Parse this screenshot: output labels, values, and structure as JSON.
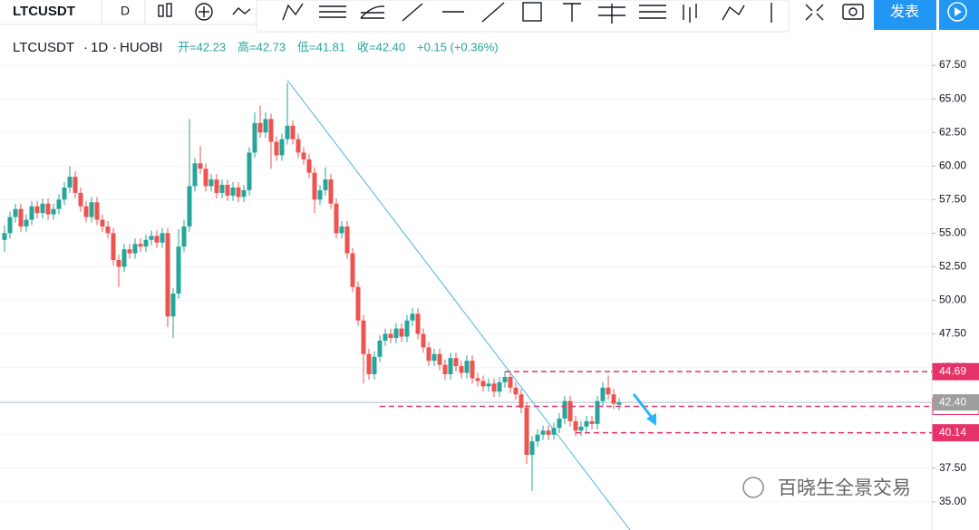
{
  "toolbar": {
    "symbol": "LTCUSDT",
    "interval": "D",
    "publish": "发表"
  },
  "chart_data": {
    "type": "candlestick",
    "legend": {
      "symbol": "LTCUSDT",
      "interval": "1D",
      "exchange": "HUOBI",
      "open": "开=42.23",
      "high": "高=42.73",
      "low": "低=41.81",
      "close": "收=42.40",
      "change": "+0.15 (+0.36%)"
    },
    "up_color": "#26a69a",
    "down_color": "#ef5350",
    "ylim": [
      32.9,
      70.0
    ],
    "yticks": [
      {
        "value": 35,
        "label": "35.00"
      },
      {
        "value": 37.5,
        "label": "37.50"
      },
      {
        "value": 40,
        "label": "40.00"
      },
      {
        "value": 42.5,
        "label": "42.50"
      },
      {
        "value": 45,
        "label": "45.00"
      },
      {
        "value": 47.5,
        "label": "47.50"
      },
      {
        "value": 50,
        "label": "50.00"
      },
      {
        "value": 52.5,
        "label": "52.50"
      },
      {
        "value": 55,
        "label": "55.00"
      },
      {
        "value": 57.5,
        "label": "57.50"
      },
      {
        "value": 60,
        "label": "60.00"
      },
      {
        "value": 62.5,
        "label": "62.50"
      },
      {
        "value": 65,
        "label": "65.00"
      },
      {
        "value": 67.5,
        "label": "67.50"
      }
    ],
    "grid": true,
    "levels": [
      {
        "value": 44.69,
        "label": "44.69",
        "color": "#e5336a",
        "start": 92
      },
      {
        "value": 42.11,
        "label": "42.11",
        "color": "#e5336a",
        "start": 69
      },
      {
        "value": 40.14,
        "label": "40.14",
        "color": "#e5336a",
        "start": 105
      }
    ],
    "last_price": {
      "value": 42.4,
      "label": "42.40",
      "color": "#9e9e9e"
    },
    "trendline": {
      "start": [
        52,
        66.4
      ],
      "end": [
        115,
        32.9
      ],
      "color": "#4fb3e0"
    },
    "watermark": "百晓生全景交易",
    "candles": [
      [
        54.5,
        55.6,
        53.6,
        55.0
      ],
      [
        55.0,
        56.6,
        54.6,
        56.2
      ],
      [
        56.2,
        57.2,
        55.8,
        56.8
      ],
      [
        56.8,
        57.2,
        55.1,
        55.5
      ],
      [
        55.5,
        56.4,
        55.1,
        56.0
      ],
      [
        56.0,
        57.4,
        55.6,
        57.0
      ],
      [
        57.0,
        57.4,
        56.1,
        56.5
      ],
      [
        56.5,
        57.6,
        56.1,
        57.2
      ],
      [
        57.2,
        57.6,
        56.0,
        56.4
      ],
      [
        56.4,
        57.2,
        56.0,
        56.8
      ],
      [
        56.8,
        57.9,
        56.4,
        57.5
      ],
      [
        57.5,
        58.8,
        57.1,
        58.4
      ],
      [
        58.4,
        60.0,
        58.0,
        59.2
      ],
      [
        59.2,
        59.6,
        57.6,
        58.0
      ],
      [
        58.0,
        58.4,
        56.6,
        57.0
      ],
      [
        57.0,
        57.4,
        55.8,
        56.2
      ],
      [
        56.2,
        57.7,
        55.8,
        57.3
      ],
      [
        57.3,
        57.7,
        55.6,
        56.0
      ],
      [
        56.0,
        56.4,
        55.1,
        55.5
      ],
      [
        55.5,
        55.9,
        54.6,
        55.0
      ],
      [
        55.0,
        55.4,
        52.6,
        53.0
      ],
      [
        53.0,
        53.4,
        51.0,
        52.5
      ],
      [
        52.5,
        54.2,
        52.1,
        53.8
      ],
      [
        53.8,
        54.2,
        53.1,
        53.5
      ],
      [
        53.5,
        54.6,
        53.1,
        54.2
      ],
      [
        54.2,
        54.6,
        53.6,
        54.0
      ],
      [
        54.0,
        54.9,
        53.6,
        54.5
      ],
      [
        54.5,
        55.2,
        54.1,
        54.8
      ],
      [
        54.8,
        55.2,
        53.9,
        54.3
      ],
      [
        54.3,
        55.4,
        53.9,
        55.0
      ],
      [
        55.0,
        55.4,
        48.0,
        48.8
      ],
      [
        48.8,
        50.9,
        47.2,
        50.5
      ],
      [
        50.5,
        55.3,
        50.1,
        54.0
      ],
      [
        54.0,
        56.0,
        53.6,
        55.5
      ],
      [
        55.5,
        63.5,
        55.1,
        58.5
      ],
      [
        58.5,
        60.6,
        58.1,
        60.2
      ],
      [
        60.2,
        61.5,
        59.4,
        59.8
      ],
      [
        59.8,
        60.2,
        58.1,
        58.5
      ],
      [
        58.5,
        59.4,
        58.1,
        59.0
      ],
      [
        59.0,
        59.4,
        57.6,
        58.0
      ],
      [
        58.0,
        59.0,
        57.6,
        58.6
      ],
      [
        58.6,
        59.0,
        57.4,
        57.8
      ],
      [
        57.8,
        58.8,
        57.4,
        58.4
      ],
      [
        58.4,
        58.8,
        57.3,
        57.7
      ],
      [
        57.7,
        58.6,
        57.3,
        58.2
      ],
      [
        58.2,
        61.4,
        57.8,
        61.0
      ],
      [
        61.0,
        64.0,
        60.6,
        63.2
      ],
      [
        63.2,
        64.5,
        62.1,
        62.5
      ],
      [
        62.5,
        64.0,
        62.1,
        63.5
      ],
      [
        63.5,
        63.9,
        59.8,
        61.8
      ],
      [
        61.8,
        62.2,
        60.4,
        60.8
      ],
      [
        60.8,
        62.4,
        60.4,
        62.0
      ],
      [
        62.0,
        66.2,
        61.6,
        63.0
      ],
      [
        63.0,
        63.4,
        61.6,
        62.0
      ],
      [
        62.0,
        62.4,
        60.6,
        61.0
      ],
      [
        61.0,
        61.4,
        60.1,
        60.5
      ],
      [
        60.5,
        60.9,
        59.1,
        59.5
      ],
      [
        59.5,
        59.9,
        56.5,
        57.5
      ],
      [
        57.5,
        58.6,
        57.1,
        58.2
      ],
      [
        58.2,
        59.9,
        57.8,
        59.0
      ],
      [
        59.0,
        59.4,
        56.8,
        57.2
      ],
      [
        57.2,
        57.6,
        54.6,
        55.0
      ],
      [
        55.0,
        55.9,
        54.6,
        55.5
      ],
      [
        55.5,
        55.9,
        53.1,
        53.5
      ],
      [
        53.5,
        53.9,
        50.6,
        51.0
      ],
      [
        51.0,
        51.4,
        48.1,
        48.5
      ],
      [
        48.5,
        48.9,
        43.8,
        46.0
      ],
      [
        46.0,
        46.4,
        44.1,
        44.5
      ],
      [
        44.5,
        46.2,
        44.1,
        45.8
      ],
      [
        45.8,
        47.4,
        45.4,
        47.0
      ],
      [
        47.0,
        47.9,
        46.6,
        47.5
      ],
      [
        47.5,
        47.9,
        46.8,
        47.2
      ],
      [
        47.2,
        48.3,
        46.8,
        47.9
      ],
      [
        47.9,
        48.3,
        46.9,
        47.3
      ],
      [
        47.3,
        48.9,
        46.9,
        48.5
      ],
      [
        48.5,
        49.4,
        48.1,
        49.0
      ],
      [
        49.0,
        49.4,
        47.1,
        47.5
      ],
      [
        47.5,
        47.9,
        46.1,
        46.5
      ],
      [
        46.5,
        46.9,
        45.1,
        45.5
      ],
      [
        45.5,
        46.4,
        45.1,
        46.0
      ],
      [
        46.0,
        46.4,
        44.8,
        45.2
      ],
      [
        45.2,
        45.6,
        44.1,
        44.5
      ],
      [
        44.5,
        46.1,
        44.1,
        45.7
      ],
      [
        45.7,
        46.1,
        44.7,
        45.1
      ],
      [
        45.1,
        45.5,
        44.2,
        44.6
      ],
      [
        44.6,
        45.9,
        44.2,
        45.5
      ],
      [
        45.5,
        45.9,
        43.8,
        44.2
      ],
      [
        44.2,
        44.6,
        43.6,
        44.0
      ],
      [
        44.0,
        44.4,
        43.2,
        43.6
      ],
      [
        43.6,
        44.2,
        43.2,
        43.8
      ],
      [
        43.8,
        44.2,
        42.8,
        43.2
      ],
      [
        43.2,
        44.3,
        42.8,
        43.9
      ],
      [
        43.9,
        44.7,
        43.5,
        44.3
      ],
      [
        44.3,
        44.7,
        43.1,
        43.5
      ],
      [
        43.5,
        43.9,
        42.6,
        43.0
      ],
      [
        43.0,
        43.4,
        41.6,
        42.0
      ],
      [
        42.0,
        42.4,
        37.8,
        38.5
      ],
      [
        38.5,
        39.9,
        35.8,
        39.5
      ],
      [
        39.5,
        40.4,
        39.1,
        40.0
      ],
      [
        40.0,
        40.7,
        39.6,
        40.3
      ],
      [
        40.3,
        40.7,
        39.6,
        40.0
      ],
      [
        40.0,
        40.9,
        39.6,
        40.5
      ],
      [
        40.5,
        41.6,
        40.1,
        41.2
      ],
      [
        41.2,
        42.9,
        40.8,
        42.5
      ],
      [
        42.5,
        42.9,
        40.6,
        41.0
      ],
      [
        41.0,
        41.4,
        39.9,
        40.3
      ],
      [
        40.3,
        41.0,
        39.9,
        40.6
      ],
      [
        40.6,
        41.4,
        40.2,
        41.0
      ],
      [
        41.0,
        41.4,
        40.4,
        40.8
      ],
      [
        40.8,
        42.9,
        40.4,
        42.5
      ],
      [
        42.5,
        43.9,
        42.1,
        43.5
      ],
      [
        43.5,
        44.4,
        42.6,
        43.0
      ],
      [
        43.0,
        43.4,
        41.9,
        42.3
      ],
      [
        42.23,
        42.73,
        41.81,
        42.4
      ]
    ]
  }
}
